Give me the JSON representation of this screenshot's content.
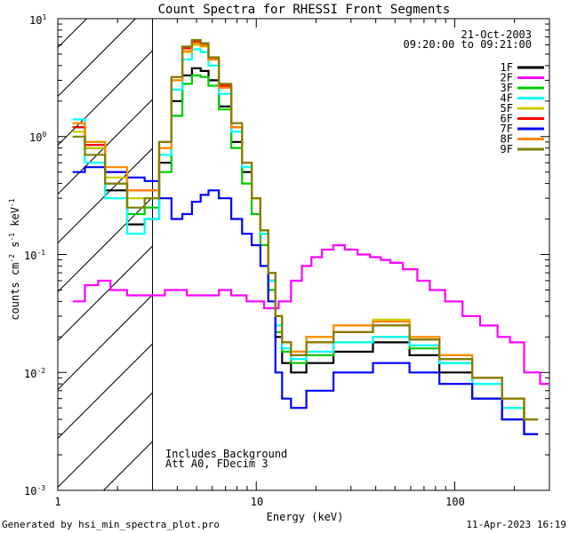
{
  "chart_data": {
    "type": "line",
    "title": "Count Spectra for RHESSI Front Segments",
    "xlabel": "Energy (keV)",
    "ylabel": "counts cm^-2 s^-1 keV^-1",
    "xscale": "log",
    "yscale": "log",
    "xlim": [
      1,
      300
    ],
    "ylim": [
      0.001,
      10
    ],
    "x_tick_labels": [
      "1",
      "10",
      "100"
    ],
    "y_tick_labels": [
      "10^-3",
      "10^-2",
      "10^-1",
      "10^0",
      "10^1"
    ],
    "excluded_region_keV": [
      1,
      3
    ],
    "date": "21-Oct-2003",
    "time_range": "09:20:00 to 09:21:00",
    "annotations": [
      "Includes Background",
      "Att A0, FDecim 3"
    ],
    "series": [
      {
        "name": "1F",
        "color": "#000000",
        "x": [
          1.25,
          1.5,
          2.0,
          2.5,
          3.0,
          3.5,
          4.0,
          4.5,
          5.0,
          5.5,
          6.0,
          7.0,
          8.0,
          9.0,
          10.0,
          11.0,
          12.0,
          13.0,
          14.0,
          16.0,
          20.0,
          30.0,
          50.0,
          70.0,
          100.0,
          150.0,
          200.0,
          250.0
        ],
        "values": [
          1.2,
          0.8,
          0.35,
          0.18,
          0.2,
          0.6,
          2.0,
          3.3,
          3.8,
          3.6,
          3.0,
          1.8,
          0.9,
          0.5,
          0.3,
          0.15,
          0.06,
          0.02,
          0.012,
          0.01,
          0.012,
          0.015,
          0.018,
          0.014,
          0.01,
          0.006,
          0.004,
          0.003
        ]
      },
      {
        "name": "2F",
        "color": "#ff00ff",
        "x": [
          1.25,
          1.5,
          1.7,
          2.0,
          2.5,
          3.0,
          4.0,
          5.0,
          6.0,
          7.0,
          8.0,
          10.0,
          12.0,
          14.0,
          16.0,
          18.0,
          20.0,
          23.0,
          26.0,
          30.0,
          35.0,
          40.0,
          45.0,
          50.0,
          60.0,
          70.0,
          80.0,
          100.0,
          120.0,
          150.0,
          180.0,
          200.0,
          250.0,
          290.0
        ],
        "values": [
          0.04,
          0.055,
          0.06,
          0.05,
          0.045,
          0.045,
          0.05,
          0.045,
          0.045,
          0.05,
          0.045,
          0.04,
          0.035,
          0.04,
          0.06,
          0.08,
          0.095,
          0.11,
          0.12,
          0.11,
          0.1,
          0.095,
          0.09,
          0.085,
          0.075,
          0.06,
          0.05,
          0.04,
          0.03,
          0.025,
          0.02,
          0.018,
          0.01,
          0.008
        ]
      },
      {
        "name": "3F",
        "color": "#00cc00",
        "x": [
          1.25,
          1.5,
          2.0,
          2.5,
          3.0,
          3.5,
          4.0,
          4.5,
          5.0,
          5.5,
          6.0,
          7.0,
          8.0,
          9.0,
          10.0,
          11.0,
          12.0,
          13.0,
          14.0,
          16.0,
          20.0,
          30.0,
          50.0,
          70.0,
          100.0,
          150.0,
          200.0,
          250.0
        ],
        "values": [
          1.3,
          0.9,
          0.4,
          0.22,
          0.25,
          0.5,
          1.5,
          2.8,
          3.3,
          3.2,
          2.7,
          1.7,
          0.8,
          0.4,
          0.22,
          0.12,
          0.05,
          0.022,
          0.015,
          0.012,
          0.014,
          0.018,
          0.02,
          0.016,
          0.012,
          0.008,
          0.005,
          0.004
        ]
      },
      {
        "name": "4F",
        "color": "#00ffff",
        "x": [
          1.25,
          1.5,
          2.0,
          2.5,
          3.0,
          3.5,
          4.0,
          4.5,
          5.0,
          5.5,
          6.0,
          7.0,
          8.0,
          9.0,
          10.0,
          11.0,
          12.0,
          13.0,
          14.0,
          16.0,
          20.0,
          30.0,
          50.0,
          70.0,
          100.0,
          150.0,
          200.0,
          250.0
        ],
        "values": [
          1.4,
          0.6,
          0.3,
          0.15,
          0.2,
          0.7,
          2.5,
          4.5,
          5.5,
          5.2,
          4.0,
          2.3,
          1.1,
          0.55,
          0.3,
          0.15,
          0.06,
          0.025,
          0.016,
          0.013,
          0.015,
          0.018,
          0.02,
          0.017,
          0.012,
          0.008,
          0.005,
          0.004
        ]
      },
      {
        "name": "5F",
        "color": "#cccc00",
        "x": [
          1.25,
          1.5,
          2.0,
          2.5,
          3.0,
          3.5,
          4.0,
          4.5,
          5.0,
          5.5,
          6.0,
          7.0,
          8.0,
          9.0,
          10.0,
          11.0,
          12.0,
          13.0,
          14.0,
          16.0,
          20.0,
          30.0,
          50.0,
          70.0,
          100.0,
          150.0,
          200.0,
          250.0
        ],
        "values": [
          1.1,
          0.8,
          0.45,
          0.3,
          0.3,
          0.8,
          3.0,
          5.2,
          6.0,
          5.8,
          4.5,
          2.6,
          1.2,
          0.6,
          0.3,
          0.16,
          0.07,
          0.03,
          0.018,
          0.015,
          0.02,
          0.025,
          0.028,
          0.02,
          0.014,
          0.009,
          0.006,
          0.004
        ]
      },
      {
        "name": "6F",
        "color": "#ff0000",
        "x": [
          1.25,
          1.5,
          2.0,
          2.5,
          3.0,
          3.5,
          4.0,
          4.5,
          5.0,
          5.5,
          6.0,
          7.0,
          8.0,
          9.0,
          10.0,
          11.0,
          12.0,
          13.0,
          14.0,
          16.0,
          20.0,
          30.0,
          50.0,
          70.0,
          100.0,
          150.0,
          200.0,
          250.0
        ],
        "values": [
          1.2,
          0.85,
          0.5,
          0.35,
          0.35,
          0.9,
          3.2,
          5.6,
          6.4,
          6.0,
          4.6,
          2.7,
          1.2,
          0.6,
          0.3,
          0.16,
          0.07,
          0.03,
          0.018,
          0.014,
          0.018,
          0.022,
          0.025,
          0.019,
          0.013,
          0.009,
          0.006,
          0.004
        ]
      },
      {
        "name": "7F",
        "color": "#0000ff",
        "x": [
          1.25,
          1.5,
          2.0,
          2.5,
          3.0,
          3.5,
          4.0,
          4.5,
          5.0,
          5.5,
          6.0,
          7.0,
          8.0,
          9.0,
          10.0,
          11.0,
          12.0,
          13.0,
          14.0,
          16.0,
          20.0,
          30.0,
          50.0,
          70.0,
          100.0,
          150.0,
          200.0,
          250.0
        ],
        "values": [
          0.5,
          0.55,
          0.5,
          0.45,
          0.42,
          0.3,
          0.2,
          0.22,
          0.28,
          0.32,
          0.35,
          0.3,
          0.2,
          0.15,
          0.12,
          0.08,
          0.04,
          0.01,
          0.006,
          0.005,
          0.007,
          0.01,
          0.012,
          0.01,
          0.008,
          0.006,
          0.004,
          0.003
        ]
      },
      {
        "name": "8F",
        "color": "#ff8800",
        "x": [
          1.25,
          1.5,
          2.0,
          2.5,
          3.0,
          3.5,
          4.0,
          4.5,
          5.0,
          5.5,
          6.0,
          7.0,
          8.0,
          9.0,
          10.0,
          11.0,
          12.0,
          13.0,
          14.0,
          16.0,
          20.0,
          30.0,
          50.0,
          70.0,
          100.0,
          150.0,
          200.0,
          250.0
        ],
        "values": [
          1.3,
          0.9,
          0.55,
          0.35,
          0.35,
          0.8,
          3.0,
          5.3,
          6.2,
          5.9,
          4.5,
          2.6,
          1.2,
          0.6,
          0.3,
          0.16,
          0.07,
          0.03,
          0.018,
          0.015,
          0.02,
          0.025,
          0.027,
          0.02,
          0.014,
          0.009,
          0.006,
          0.004
        ]
      },
      {
        "name": "9F",
        "color": "#808000",
        "x": [
          1.25,
          1.5,
          2.0,
          2.5,
          3.0,
          3.5,
          4.0,
          4.5,
          5.0,
          5.5,
          6.0,
          7.0,
          8.0,
          9.0,
          10.0,
          11.0,
          12.0,
          13.0,
          14.0,
          16.0,
          20.0,
          30.0,
          50.0,
          70.0,
          100.0,
          150.0,
          200.0,
          250.0
        ],
        "values": [
          1.0,
          0.7,
          0.4,
          0.25,
          0.3,
          0.9,
          3.2,
          5.8,
          6.6,
          6.2,
          4.7,
          2.8,
          1.3,
          0.6,
          0.3,
          0.16,
          0.07,
          0.03,
          0.018,
          0.014,
          0.018,
          0.022,
          0.025,
          0.019,
          0.013,
          0.009,
          0.006,
          0.004
        ]
      }
    ]
  },
  "footer": {
    "left": "Generated by hsi_min_spectra_plot.pro",
    "right": "11-Apr-2023 16:19"
  }
}
